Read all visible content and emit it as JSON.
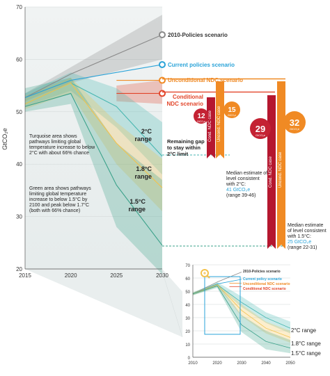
{
  "chart_data": [
    {
      "type": "area",
      "ylabel": "GtCO₂e",
      "xlim": [
        2015,
        2030
      ],
      "ylim": [
        20,
        70
      ],
      "x_ticks": [
        "2015",
        "2020",
        "2025",
        "2030"
      ],
      "y_ticks": [
        "20",
        "30",
        "40",
        "50",
        "60",
        "70"
      ],
      "series": [
        {
          "name": "2010-Policies scenario",
          "x": [
            2015,
            2020,
            2030
          ],
          "values": [
            52.7,
            57.2,
            64.7
          ],
          "band_low": [
            52.0,
            55.5,
            60.0
          ],
          "band_high": [
            53.5,
            58.5,
            68.5
          ],
          "color": "#8a8a8a"
        },
        {
          "name": "Current policies scenario",
          "x": [
            2015,
            2020,
            2030
          ],
          "values": [
            52.7,
            56.0,
            59.0
          ],
          "color": "#2aa3d8"
        },
        {
          "name": "Unconditional NDC scenario",
          "x": [
            2025,
            2030
          ],
          "values": [
            56.0,
            56.0
          ],
          "color": "#f08a24"
        },
        {
          "name": "Conditional NDC scenario",
          "x": [
            2025,
            2030
          ],
          "values": [
            53.5,
            53.5
          ],
          "band_low": [
            52.0,
            51.5
          ],
          "band_high": [
            55.0,
            56.0
          ],
          "color": "#e2452a"
        },
        {
          "name": "2°C range",
          "x": [
            2015,
            2020,
            2025,
            2030
          ],
          "values": [
            51.5,
            55.5,
            51.0,
            41.5
          ],
          "band_low": [
            51.0,
            54.0,
            47.0,
            38.0
          ],
          "band_high": [
            53.5,
            57.5,
            54.5,
            48.0
          ],
          "color": "#46b6b0"
        },
        {
          "name": "1.8°C range",
          "x": [
            2015,
            2020,
            2025,
            2030
          ],
          "values": [
            51.5,
            55.5,
            44.0,
            35.5
          ],
          "band_low": [
            50.5,
            53.5,
            40.0,
            31.0
          ],
          "band_high": [
            53.0,
            56.5,
            48.0,
            41.0
          ],
          "color": "#f3c24c"
        },
        {
          "name": "1.5°C range",
          "x": [
            2015,
            2020,
            2025,
            2030
          ],
          "values": [
            51.0,
            53.5,
            36.0,
            24.5
          ],
          "band_low": [
            50.0,
            51.5,
            28.0,
            19.0
          ],
          "band_high": [
            54.5,
            56.5,
            44.0,
            37.0
          ],
          "color": "#3aa18a"
        }
      ]
    },
    {
      "type": "area",
      "xlim": [
        2010,
        2050
      ],
      "ylim": [
        0,
        70
      ],
      "x_ticks": [
        "2010",
        "2020",
        "2030",
        "2040",
        "2050"
      ],
      "y_ticks": [
        "0",
        "10",
        "20",
        "30",
        "40",
        "50",
        "60",
        "70"
      ],
      "series": [
        {
          "name": "2010-Policies scenario",
          "x": [
            2010,
            2020,
            2030
          ],
          "values": [
            48.0,
            57.0,
            64.5
          ],
          "color": "#8a8a8a"
        },
        {
          "name": "Current policy scenario",
          "x": [
            2010,
            2020,
            2030
          ],
          "values": [
            48.0,
            55.5,
            59.0
          ],
          "color": "#2aa3d8"
        },
        {
          "name": "Unconditional NDC scenario",
          "x": [
            2025,
            2030
          ],
          "values": [
            56.0,
            56.0
          ],
          "color": "#f08a24"
        },
        {
          "name": "Conditional NDC scenario",
          "x": [
            2025,
            2030
          ],
          "values": [
            53.5,
            53.5
          ],
          "color": "#e2452a"
        },
        {
          "name": "2°C range",
          "x": [
            2010,
            2020,
            2030,
            2040,
            2050
          ],
          "values": [
            48.0,
            55.0,
            41.5,
            30.0,
            22.0
          ],
          "band_low": [
            47.0,
            53.5,
            38.0,
            26.0,
            18.0
          ],
          "band_high": [
            49.0,
            57.0,
            46.0,
            34.0,
            27.0
          ],
          "color": "#46b6b0"
        },
        {
          "name": "1.8°C range",
          "x": [
            2010,
            2020,
            2030,
            2040,
            2050
          ],
          "values": [
            48.0,
            55.0,
            35.5,
            22.0,
            15.0
          ],
          "band_low": [
            47.0,
            53.5,
            31.0,
            18.0,
            11.0
          ],
          "band_high": [
            49.0,
            56.0,
            40.0,
            27.0,
            20.0
          ],
          "color": "#f3c24c"
        },
        {
          "name": "1.5°C range",
          "x": [
            2010,
            2020,
            2030,
            2040,
            2050
          ],
          "values": [
            48.0,
            54.0,
            24.5,
            12.0,
            7.0
          ],
          "band_low": [
            47.0,
            52.5,
            19.0,
            6.0,
            3.0
          ],
          "band_high": [
            49.0,
            56.0,
            32.0,
            20.0,
            13.0
          ],
          "color": "#3aa18a"
        }
      ]
    }
  ],
  "labels": {
    "policies2010": "2010-Policies scenario",
    "current": "Current policies scenario",
    "uncond": "Unconditional NDC scenario",
    "cond_line1": "Conditional",
    "cond_line2": "NDC scenario",
    "r2c_1": "2°C",
    "r2c_2": "range",
    "r18_1": "1.8°C",
    "r18_2": "range",
    "r15_1": "1.5°C",
    "r15_2": "range",
    "turq_note": "Turquoise area shows pathways limiting global temperature increase to below 2°C with about 66% chance",
    "green_note": "Green area shows pathways limiting global temperature increase to below 1.5°C by 2100 and peak below 1.7°C (both with 66% chance)",
    "gap": "Remaining gap to stay within 2°C limit",
    "median2_a": "Median estimate of level consistent with 2°C:",
    "median2_b": "41 GtCO₂e",
    "median2_c": "(range 39-46)",
    "median15_a": "Median estimate of level consistent with 1.5°C:",
    "median15_b": "25 GtCO₂e",
    "median15_c": "(range 22-31)",
    "bar_cond_small": "Cond. NDC case",
    "bar_uncond_small": "Uncond. NDC case",
    "bar_cond_big": "Cond. NDC case",
    "bar_uncond_big": "Uncond. NDC case",
    "b12": "12",
    "b15": "15",
    "b29": "29",
    "b32": "32",
    "unit": "GtCO₂e",
    "inset_policies": "2010-Policies scenario",
    "inset_current": "Current policy scenario",
    "inset_uncond": "Unconditional NDC scenario",
    "inset_cond": "Conditional NDC scenario",
    "inset_2c": "2°C range",
    "inset_18": "1.8°C range",
    "inset_15": "1.5°C range"
  }
}
